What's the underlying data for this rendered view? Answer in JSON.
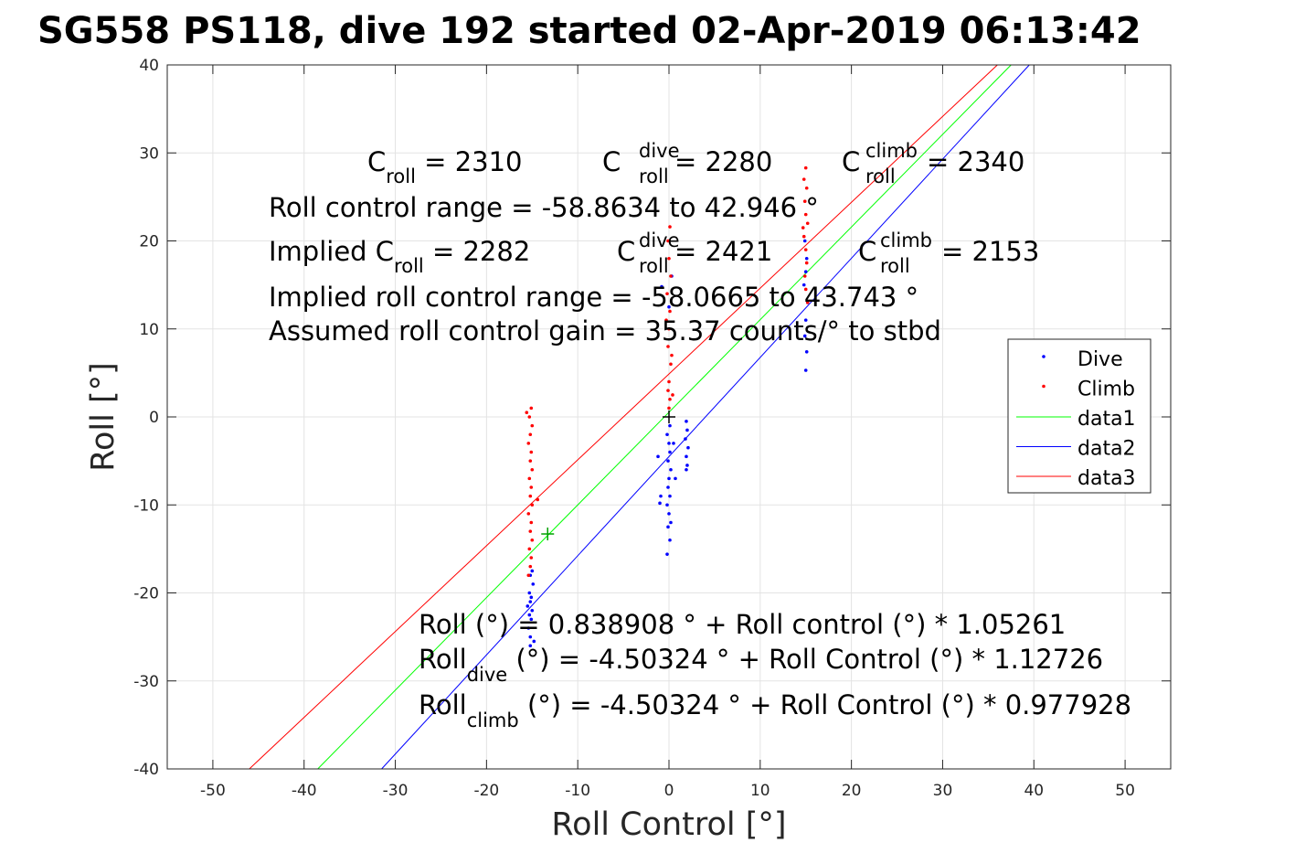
{
  "chart_data": {
    "type": "scatter",
    "title": "SG558 PS118, dive 192 started 02-Apr-2019 06:13:42",
    "xlabel": "Roll Control [°]",
    "ylabel": "Roll [°]",
    "xlim": [
      -55,
      55
    ],
    "ylim": [
      -40,
      40
    ],
    "xticks": [
      -50,
      -40,
      -30,
      -20,
      -10,
      0,
      10,
      20,
      30,
      40,
      50
    ],
    "yticks": [
      -40,
      -30,
      -20,
      -10,
      0,
      10,
      20,
      30,
      40
    ],
    "grid": true,
    "legend_position": "top-right",
    "series": [
      {
        "name": "Dive",
        "kind": "points",
        "color": "#0000ff",
        "points": [
          [
            -15.2,
            -25
          ],
          [
            -15.4,
            -24
          ],
          [
            -15.1,
            -23
          ],
          [
            -15.3,
            -22.5
          ],
          [
            -15.0,
            -22
          ],
          [
            -15.5,
            -21.5
          ],
          [
            -15.2,
            -21
          ],
          [
            -15.1,
            -20.5
          ],
          [
            -15.3,
            -20
          ],
          [
            -14.9,
            -19
          ],
          [
            -15.2,
            -18
          ],
          [
            -15.0,
            -17.5
          ],
          [
            -15.2,
            -26
          ],
          [
            -14.8,
            -25.5
          ],
          [
            -0.2,
            -15.6
          ],
          [
            0.1,
            -14
          ],
          [
            -0.1,
            -12.5
          ],
          [
            0.2,
            -12
          ],
          [
            0,
            -11
          ],
          [
            -0.2,
            -10
          ],
          [
            0.1,
            -9
          ],
          [
            -0.1,
            -8
          ],
          [
            0,
            -7
          ],
          [
            0.2,
            -6
          ],
          [
            -0.1,
            -5
          ],
          [
            0.1,
            -4
          ],
          [
            0,
            -3
          ],
          [
            -0.2,
            -2
          ],
          [
            0.1,
            -1
          ],
          [
            -1.2,
            -4.5
          ],
          [
            -0.9,
            -9
          ],
          [
            -1.0,
            -9.8
          ],
          [
            0.7,
            -7
          ],
          [
            0.5,
            -3
          ],
          [
            1.9,
            -0.5
          ],
          [
            2.0,
            -1.5
          ],
          [
            1.8,
            -2.5
          ],
          [
            2.1,
            -3.5
          ],
          [
            1.9,
            -4.5
          ],
          [
            2.0,
            -5.5
          ],
          [
            1.9,
            -6
          ],
          [
            -0.8,
            14.8
          ],
          [
            0.0,
            12.5
          ],
          [
            0.3,
            16
          ],
          [
            15.0,
            5.3
          ],
          [
            15.1,
            7.4
          ],
          [
            14.9,
            9.2
          ],
          [
            15.0,
            11
          ],
          [
            15.2,
            13
          ],
          [
            14.8,
            15
          ],
          [
            15.0,
            16.5
          ],
          [
            15.1,
            18
          ],
          [
            14.9,
            20
          ]
        ]
      },
      {
        "name": "Climb",
        "kind": "points",
        "color": "#ff0000",
        "points": [
          [
            -15.1,
            1
          ],
          [
            -15.3,
            0
          ],
          [
            -15.0,
            -1
          ],
          [
            -15.2,
            -2
          ],
          [
            -15.4,
            -3
          ],
          [
            -15.1,
            -4
          ],
          [
            -15.2,
            -5
          ],
          [
            -15.0,
            -6
          ],
          [
            -15.3,
            -7
          ],
          [
            -15.1,
            -8
          ],
          [
            -15.2,
            -9
          ],
          [
            -15.0,
            -10
          ],
          [
            -15.4,
            -11
          ],
          [
            -15.1,
            -12
          ],
          [
            -15.2,
            -13
          ],
          [
            -15.0,
            -14
          ],
          [
            -15.3,
            -15
          ],
          [
            -15.1,
            -16
          ],
          [
            -15.2,
            -17
          ],
          [
            -15.4,
            -18
          ],
          [
            -14.4,
            -9.4
          ],
          [
            -15.6,
            0.5
          ],
          [
            0.1,
            21.6
          ],
          [
            -0.1,
            20
          ],
          [
            0.0,
            18
          ],
          [
            0.2,
            16
          ],
          [
            -0.2,
            14
          ],
          [
            0.1,
            12
          ],
          [
            0.0,
            10
          ],
          [
            -0.1,
            8
          ],
          [
            0.2,
            6
          ],
          [
            0.0,
            4
          ],
          [
            -0.1,
            3
          ],
          [
            0.1,
            2
          ],
          [
            0.0,
            1
          ],
          [
            -0.3,
            11
          ],
          [
            0.3,
            7
          ],
          [
            0.4,
            2.5
          ],
          [
            15.0,
            28.3
          ],
          [
            14.8,
            27
          ],
          [
            15.1,
            26
          ],
          [
            14.9,
            24.5
          ],
          [
            15.0,
            23
          ],
          [
            15.2,
            22
          ],
          [
            14.8,
            20.5
          ],
          [
            15.0,
            19
          ],
          [
            15.1,
            17.5
          ],
          [
            14.9,
            16
          ],
          [
            15.0,
            14.5
          ],
          [
            15.2,
            13
          ],
          [
            14.7,
            21.5
          ]
        ]
      },
      {
        "name": "data1",
        "kind": "line",
        "color": "#00ff00",
        "x": [
          -38.5,
          37.5
        ],
        "y": [
          -40,
          40
        ]
      },
      {
        "name": "data2",
        "kind": "line",
        "color": "#0000ff",
        "x": [
          -31.5,
          39.5
        ],
        "y": [
          -40,
          40
        ]
      },
      {
        "name": "data3",
        "kind": "line",
        "color": "#ff0000",
        "x": [
          -46,
          36
        ],
        "y": [
          -40,
          40
        ]
      }
    ],
    "markers": [
      {
        "kind": "plus",
        "color": "#000000",
        "x": 0,
        "y": 0
      },
      {
        "kind": "plus",
        "color": "#00a000",
        "x": -13.3,
        "y": -13.3
      }
    ]
  },
  "annotations": {
    "line1": {
      "c_roll": "C",
      "c_roll_sub": "roll",
      "c_roll_val": " = 2310",
      "c_dive": "C",
      "c_dive_sup": "dive",
      "c_dive_sub": "roll",
      "c_dive_val": " = 2280",
      "c_climb": "C",
      "c_climb_sup": "climb",
      "c_climb_sub": "roll",
      "c_climb_val": " = 2340"
    },
    "line2": "Roll control range = -58.8634 to 42.946 °",
    "line3": {
      "implied": "Implied C",
      "implied_sub": "roll",
      "implied_val": " = 2282",
      "c_dive": "C",
      "c_dive_sup": "dive",
      "c_dive_sub": "roll",
      "c_dive_val": " = 2421",
      "c_climb": "C",
      "c_climb_sup": "climb",
      "c_climb_sub": "roll",
      "c_climb_val": " = 2153"
    },
    "line4": "Implied roll control range = -58.0665 to 43.743 °",
    "line5": "Assumed roll control gain = 35.37 counts/° to stbd",
    "fit1": "Roll (°) = 0.838908 ° + Roll control (°) * 1.05261",
    "fit2": {
      "lead": "Roll",
      "sub": "dive",
      "rest": " (°) = -4.50324 ° + Roll Control (°) * 1.12726"
    },
    "fit3": {
      "lead": "Roll",
      "sub": "climb",
      "rest": " (°) = -4.50324 ° + Roll Control (°) * 0.977928"
    }
  }
}
